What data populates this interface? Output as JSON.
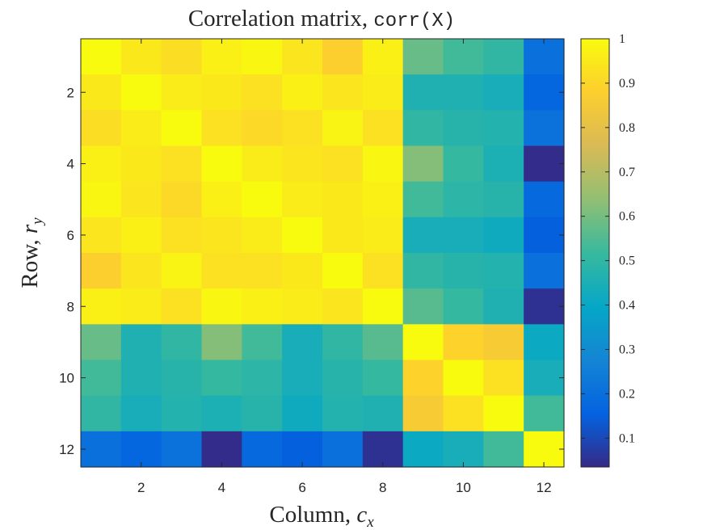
{
  "chart_data": {
    "type": "heatmap",
    "title_prefix": "Correlation matrix, ",
    "title_code": "corr(X)",
    "xlabel_prefix": "Column, ",
    "xlabel_var": "c",
    "xlabel_sub": "x",
    "ylabel_prefix": "Row, ",
    "ylabel_var": "r",
    "ylabel_sub": "y",
    "xlim": [
      0.5,
      12.5
    ],
    "ylim": [
      0.5,
      12.5
    ],
    "xticks": [
      2,
      4,
      6,
      8,
      10,
      12
    ],
    "yticks": [
      2,
      4,
      6,
      8,
      10,
      12
    ],
    "colormap": "parula",
    "clim": [
      0.035,
      1.0
    ],
    "colorbar_ticks": [
      "1",
      "0.9",
      "0.8",
      "0.7",
      "0.6",
      "0.5",
      "0.4",
      "0.3",
      "0.2",
      "0.1"
    ],
    "colorbar_tick_values": [
      1,
      0.9,
      0.8,
      0.7,
      0.6,
      0.5,
      0.4,
      0.3,
      0.2,
      0.1
    ],
    "matrix": [
      [
        1.0,
        0.95,
        0.92,
        0.97,
        0.99,
        0.94,
        0.88,
        0.97,
        0.58,
        0.53,
        0.5,
        0.2
      ],
      [
        0.95,
        1.0,
        0.96,
        0.95,
        0.93,
        0.97,
        0.94,
        0.96,
        0.46,
        0.46,
        0.44,
        0.17
      ],
      [
        0.92,
        0.96,
        1.0,
        0.93,
        0.91,
        0.93,
        0.98,
        0.93,
        0.5,
        0.48,
        0.47,
        0.21
      ],
      [
        0.97,
        0.95,
        0.93,
        1.0,
        0.96,
        0.94,
        0.93,
        0.99,
        0.62,
        0.51,
        0.45,
        0.04
      ],
      [
        0.99,
        0.94,
        0.91,
        0.97,
        1.0,
        0.96,
        0.95,
        0.97,
        0.53,
        0.49,
        0.48,
        0.18
      ],
      [
        0.94,
        0.97,
        0.93,
        0.94,
        0.96,
        1.0,
        0.95,
        0.96,
        0.44,
        0.44,
        0.42,
        0.15
      ],
      [
        0.88,
        0.94,
        0.98,
        0.93,
        0.93,
        0.95,
        1.0,
        0.93,
        0.5,
        0.48,
        0.47,
        0.2
      ],
      [
        0.97,
        0.96,
        0.93,
        0.99,
        0.97,
        0.96,
        0.94,
        1.0,
        0.56,
        0.51,
        0.46,
        0.05
      ],
      [
        0.58,
        0.46,
        0.5,
        0.62,
        0.53,
        0.44,
        0.5,
        0.56,
        1.0,
        0.89,
        0.86,
        0.41
      ],
      [
        0.53,
        0.46,
        0.48,
        0.51,
        0.49,
        0.44,
        0.48,
        0.51,
        0.89,
        1.0,
        0.93,
        0.44
      ],
      [
        0.5,
        0.44,
        0.47,
        0.45,
        0.48,
        0.42,
        0.47,
        0.46,
        0.86,
        0.93,
        1.0,
        0.53
      ],
      [
        0.2,
        0.17,
        0.21,
        0.04,
        0.18,
        0.15,
        0.2,
        0.05,
        0.41,
        0.44,
        0.53,
        1.0
      ]
    ]
  }
}
